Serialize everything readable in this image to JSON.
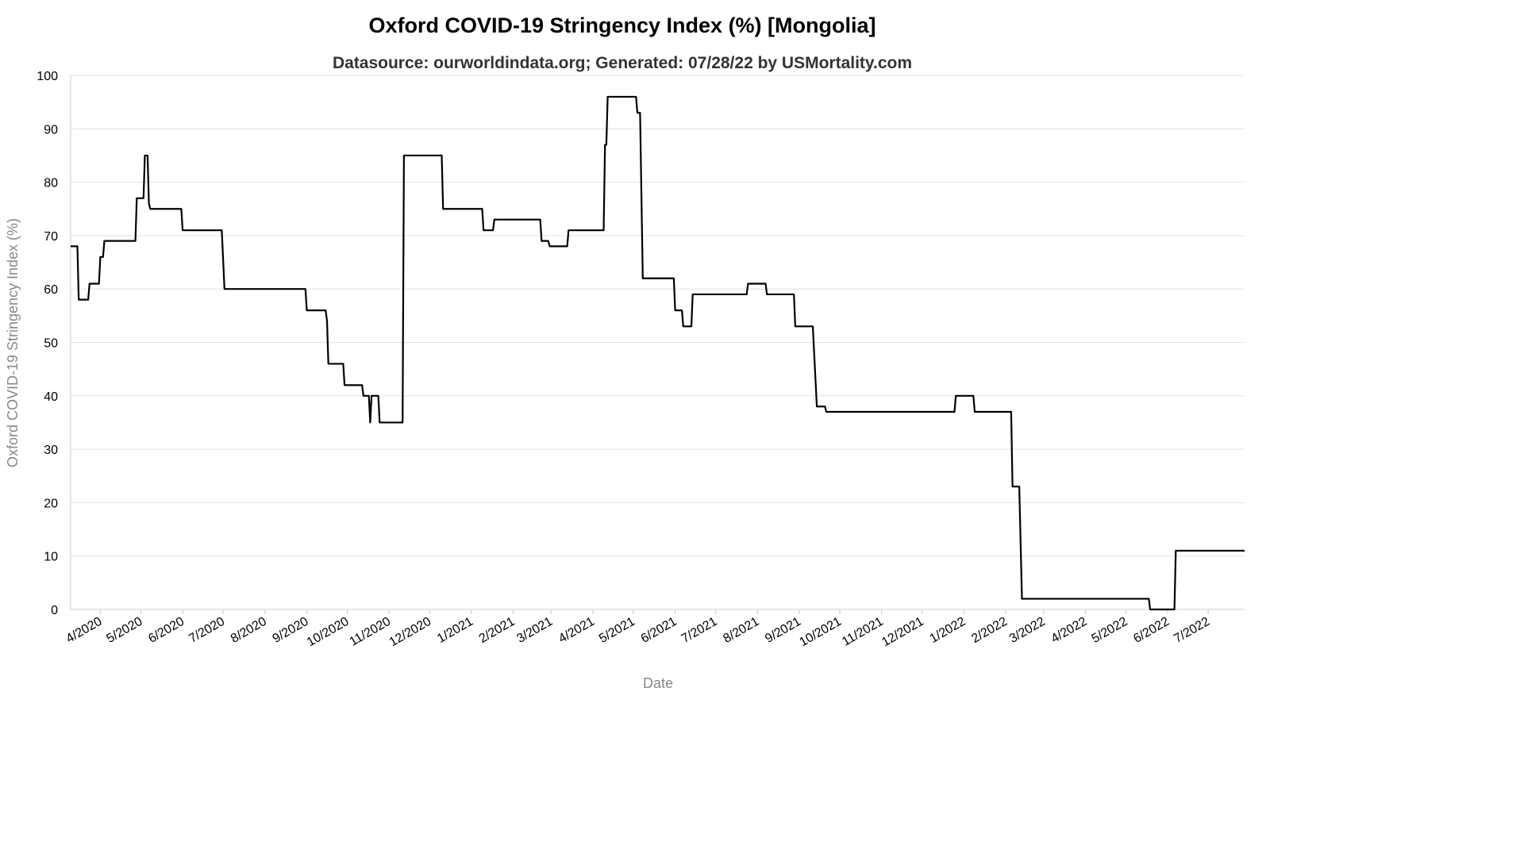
{
  "chart_data": {
    "type": "line",
    "title": "Oxford COVID-19 Stringency Index (%) [Mongolia]",
    "subtitle": "Datasource: ourworldindata.org; Generated: 07/28/22 by USMortality.com",
    "xlabel": "Date",
    "ylabel": "Oxford COVID-19 Stringency Index (%)",
    "ylim": [
      0,
      100
    ],
    "yticks": [
      0,
      10,
      20,
      30,
      40,
      50,
      60,
      70,
      80,
      90,
      100
    ],
    "xlim": [
      "2020-03-10",
      "2022-07-28"
    ],
    "xticks": [
      {
        "date": "2020-04-01",
        "label": "4/2020"
      },
      {
        "date": "2020-05-01",
        "label": "5/2020"
      },
      {
        "date": "2020-06-01",
        "label": "6/2020"
      },
      {
        "date": "2020-07-01",
        "label": "7/2020"
      },
      {
        "date": "2020-08-01",
        "label": "8/2020"
      },
      {
        "date": "2020-09-01",
        "label": "9/2020"
      },
      {
        "date": "2020-10-01",
        "label": "10/2020"
      },
      {
        "date": "2020-11-01",
        "label": "11/2020"
      },
      {
        "date": "2020-12-01",
        "label": "12/2020"
      },
      {
        "date": "2021-01-01",
        "label": "1/2021"
      },
      {
        "date": "2021-02-01",
        "label": "2/2021"
      },
      {
        "date": "2021-03-01",
        "label": "3/2021"
      },
      {
        "date": "2021-04-01",
        "label": "4/2021"
      },
      {
        "date": "2021-05-01",
        "label": "5/2021"
      },
      {
        "date": "2021-06-01",
        "label": "6/2021"
      },
      {
        "date": "2021-07-01",
        "label": "7/2021"
      },
      {
        "date": "2021-08-01",
        "label": "8/2021"
      },
      {
        "date": "2021-09-01",
        "label": "9/2021"
      },
      {
        "date": "2021-10-01",
        "label": "10/2021"
      },
      {
        "date": "2021-11-01",
        "label": "11/2021"
      },
      {
        "date": "2021-12-01",
        "label": "12/2021"
      },
      {
        "date": "2022-01-01",
        "label": "1/2022"
      },
      {
        "date": "2022-02-01",
        "label": "2/2022"
      },
      {
        "date": "2022-03-01",
        "label": "3/2022"
      },
      {
        "date": "2022-04-01",
        "label": "4/2022"
      },
      {
        "date": "2022-05-01",
        "label": "5/2022"
      },
      {
        "date": "2022-06-01",
        "label": "6/2022"
      },
      {
        "date": "2022-07-01",
        "label": "7/2022"
      }
    ],
    "grid": true,
    "line_color": "#000000",
    "series": [
      {
        "points": [
          [
            "2020-03-10",
            68
          ],
          [
            "2020-03-15",
            68
          ],
          [
            "2020-03-16",
            58
          ],
          [
            "2020-03-23",
            58
          ],
          [
            "2020-03-24",
            61
          ],
          [
            "2020-03-31",
            61
          ],
          [
            "2020-04-01",
            66
          ],
          [
            "2020-04-03",
            66
          ],
          [
            "2020-04-04",
            69
          ],
          [
            "2020-04-27",
            69
          ],
          [
            "2020-04-28",
            77
          ],
          [
            "2020-05-03",
            77
          ],
          [
            "2020-05-04",
            85
          ],
          [
            "2020-05-06",
            85
          ],
          [
            "2020-05-07",
            76
          ],
          [
            "2020-05-08",
            75
          ],
          [
            "2020-05-31",
            75
          ],
          [
            "2020-06-01",
            71
          ],
          [
            "2020-06-30",
            71
          ],
          [
            "2020-07-02",
            60
          ],
          [
            "2020-08-31",
            60
          ],
          [
            "2020-09-01",
            56
          ],
          [
            "2020-09-15",
            56
          ],
          [
            "2020-09-16",
            54
          ],
          [
            "2020-09-17",
            46
          ],
          [
            "2020-09-28",
            46
          ],
          [
            "2020-09-29",
            42
          ],
          [
            "2020-10-12",
            42
          ],
          [
            "2020-10-13",
            40
          ],
          [
            "2020-10-17",
            40
          ],
          [
            "2020-10-18",
            35
          ],
          [
            "2020-10-19",
            40
          ],
          [
            "2020-10-24",
            40
          ],
          [
            "2020-10-25",
            35
          ],
          [
            "2020-11-11",
            35
          ],
          [
            "2020-11-12",
            85
          ],
          [
            "2020-12-10",
            85
          ],
          [
            "2020-12-11",
            75
          ],
          [
            "2021-01-09",
            75
          ],
          [
            "2021-01-10",
            71
          ],
          [
            "2021-01-17",
            71
          ],
          [
            "2021-01-18",
            73
          ],
          [
            "2021-02-21",
            73
          ],
          [
            "2021-02-22",
            69
          ],
          [
            "2021-02-27",
            69
          ],
          [
            "2021-02-28",
            68
          ],
          [
            "2021-03-13",
            68
          ],
          [
            "2021-03-14",
            71
          ],
          [
            "2021-04-09",
            71
          ],
          [
            "2021-04-10",
            87
          ],
          [
            "2021-04-11",
            87
          ],
          [
            "2021-04-12",
            96
          ],
          [
            "2021-05-03",
            96
          ],
          [
            "2021-05-04",
            93
          ],
          [
            "2021-05-06",
            93
          ],
          [
            "2021-05-08",
            62
          ],
          [
            "2021-05-31",
            62
          ],
          [
            "2021-06-01",
            56
          ],
          [
            "2021-06-06",
            56
          ],
          [
            "2021-06-07",
            53
          ],
          [
            "2021-06-13",
            53
          ],
          [
            "2021-06-14",
            59
          ],
          [
            "2021-07-24",
            59
          ],
          [
            "2021-07-25",
            61
          ],
          [
            "2021-08-07",
            61
          ],
          [
            "2021-08-08",
            59
          ],
          [
            "2021-08-28",
            59
          ],
          [
            "2021-08-29",
            53
          ],
          [
            "2021-09-11",
            53
          ],
          [
            "2021-09-14",
            38
          ],
          [
            "2021-09-20",
            38
          ],
          [
            "2021-09-21",
            37
          ],
          [
            "2021-12-25",
            37
          ],
          [
            "2021-12-26",
            40
          ],
          [
            "2022-01-08",
            40
          ],
          [
            "2022-01-09",
            37
          ],
          [
            "2022-02-05",
            37
          ],
          [
            "2022-02-06",
            23
          ],
          [
            "2022-02-11",
            23
          ],
          [
            "2022-02-13",
            2
          ],
          [
            "2022-05-18",
            2
          ],
          [
            "2022-05-19",
            0
          ],
          [
            "2022-06-06",
            0
          ],
          [
            "2022-06-07",
            11
          ],
          [
            "2022-07-28",
            11
          ]
        ]
      }
    ]
  }
}
